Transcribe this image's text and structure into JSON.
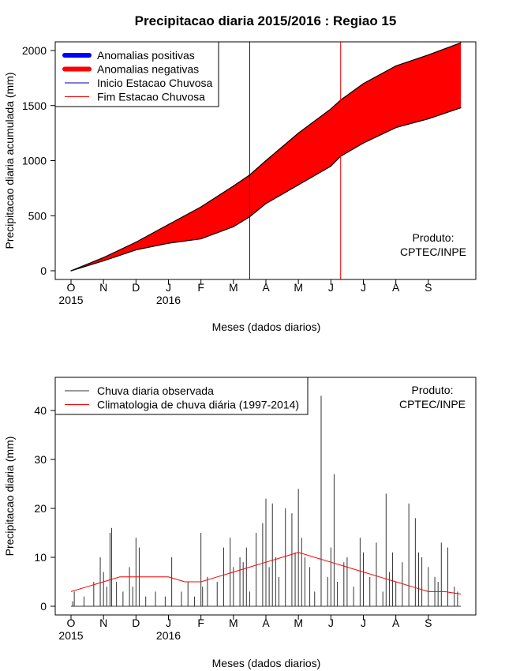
{
  "chart_data": [
    {
      "type": "area",
      "title": "Precipitacao diaria 2015/2016 : Regiao 15",
      "xlabel": "Meses (dados diarios)",
      "ylabel": "Precipitacao diaria acumulada (mm)",
      "credit": [
        "Produto:",
        "CPTEC/INPE"
      ],
      "x_ticks": [
        "O",
        "N",
        "D",
        "J",
        "F",
        "M",
        "A",
        "M",
        "J",
        "J",
        "A",
        "S"
      ],
      "year_labels": [
        {
          "month_index": 0,
          "text": "2015"
        },
        {
          "month_index": 3,
          "text": "2016"
        }
      ],
      "ylim": [
        0,
        2000
      ],
      "y_ticks": [
        0,
        500,
        1000,
        1500,
        2000
      ],
      "xlim_months": [
        0,
        12
      ],
      "legend": {
        "placement": "top-left",
        "items": [
          {
            "label": "Anomalias positivas",
            "color": "#0000ff",
            "kind": "thick"
          },
          {
            "label": "Anomalias negativas",
            "color": "#ff0000",
            "kind": "thick"
          },
          {
            "label": "Inicio Estacao Chuvosa",
            "color": "#0000aa",
            "kind": "line"
          },
          {
            "label": "Fim Estacao Chuvosa",
            "color": "#ff0000",
            "kind": "line"
          }
        ]
      },
      "vlines": [
        {
          "name": "inicio",
          "month": 5.5,
          "color": "#0000aa"
        },
        {
          "name": "fim",
          "month": 8.3,
          "color": "#ff0000"
        }
      ],
      "series": [
        {
          "name": "Climatologia acumulada",
          "color": "#000000",
          "x": [
            0,
            1,
            2,
            3,
            4,
            5,
            5.5,
            6,
            7,
            8,
            8.3,
            9,
            10,
            11,
            12
          ],
          "values": [
            0,
            120,
            260,
            420,
            580,
            770,
            870,
            1000,
            1250,
            1470,
            1550,
            1700,
            1860,
            1960,
            2070
          ]
        },
        {
          "name": "Observada acumulada",
          "color": "#000000",
          "x": [
            0,
            1,
            2,
            3,
            4,
            5,
            5.5,
            6,
            7,
            8,
            8.3,
            9,
            10,
            11,
            12
          ],
          "values": [
            0,
            90,
            190,
            250,
            290,
            400,
            490,
            610,
            780,
            950,
            1040,
            1160,
            1300,
            1380,
            1480
          ]
        }
      ],
      "fill": {
        "color": "#ff0000",
        "between": [
          "Climatologia acumulada",
          "Observada acumulada"
        ]
      }
    },
    {
      "type": "line",
      "title": "",
      "xlabel": "Meses (dados diarios)",
      "ylabel": "Precipitacao diaria (mm)",
      "credit": [
        "Produto:",
        "CPTEC/INPE"
      ],
      "x_ticks": [
        "O",
        "N",
        "D",
        "J",
        "F",
        "M",
        "A",
        "M",
        "J",
        "J",
        "A",
        "S"
      ],
      "year_labels": [
        {
          "month_index": 0,
          "text": "2015"
        },
        {
          "month_index": 3,
          "text": "2016"
        }
      ],
      "ylim": [
        0,
        45
      ],
      "y_ticks": [
        0,
        10,
        20,
        30,
        40
      ],
      "xlim_months": [
        0,
        12
      ],
      "legend": {
        "placement": "top-left",
        "items": [
          {
            "label": "Chuva diaria observada",
            "color": "#333333",
            "kind": "line"
          },
          {
            "label": "Climatologia de chuva diária (1997-2014)",
            "color": "#ff0000",
            "kind": "line"
          }
        ]
      },
      "series": [
        {
          "name": "Chuva diaria observada",
          "color": "#333333",
          "kind": "spikes",
          "x": [
            0.05,
            0.1,
            0.4,
            0.7,
            0.9,
            1.0,
            1.1,
            1.2,
            1.25,
            1.4,
            1.6,
            1.8,
            1.9,
            2.0,
            2.1,
            2.3,
            2.6,
            2.9,
            3.1,
            3.4,
            3.6,
            3.8,
            4.0,
            4.05,
            4.2,
            4.5,
            4.7,
            4.9,
            5.0,
            5.2,
            5.3,
            5.4,
            5.5,
            5.7,
            5.9,
            6.0,
            6.1,
            6.2,
            6.3,
            6.4,
            6.6,
            6.8,
            6.9,
            7.0,
            7.1,
            7.2,
            7.35,
            7.5,
            7.7,
            7.9,
            8.0,
            8.1,
            8.2,
            8.4,
            8.5,
            8.7,
            8.9,
            9.0,
            9.2,
            9.4,
            9.6,
            9.7,
            9.8,
            9.9,
            10.0,
            10.2,
            10.4,
            10.6,
            10.7,
            10.8,
            11.0,
            11.2,
            11.3,
            11.4,
            11.6,
            11.8,
            11.9
          ],
          "values": [
            1,
            3,
            2,
            5,
            10,
            7,
            4,
            15,
            16,
            5,
            3,
            8,
            4,
            14,
            12,
            2,
            3,
            2,
            10,
            3,
            5,
            2,
            15,
            4,
            6,
            5,
            12,
            14,
            8,
            10,
            9,
            12,
            3,
            15,
            17,
            22,
            8,
            21,
            10,
            6,
            20,
            19,
            11,
            24,
            14,
            10,
            8,
            3,
            43,
            6,
            12,
            27,
            5,
            9,
            10,
            4,
            14,
            11,
            6,
            13,
            3,
            23,
            7,
            11,
            5,
            9,
            21,
            18,
            11,
            10,
            8,
            6,
            5,
            13,
            12,
            4,
            3
          ]
        },
        {
          "name": "Climatologia de chuva diária (1997-2014)",
          "color": "#ff0000",
          "x": [
            0,
            0.5,
            1,
            1.5,
            2,
            2.5,
            3,
            3.5,
            4,
            4.5,
            5,
            5.5,
            6,
            6.5,
            7,
            7.5,
            8,
            8.5,
            9,
            9.5,
            10,
            10.5,
            11,
            11.5,
            12
          ],
          "values": [
            3,
            4,
            5,
            6,
            6,
            6,
            6,
            5,
            5,
            6,
            7,
            8,
            9,
            10,
            11,
            10,
            9,
            8,
            7,
            6,
            5,
            4,
            3,
            3,
            2.5
          ]
        }
      ]
    }
  ]
}
